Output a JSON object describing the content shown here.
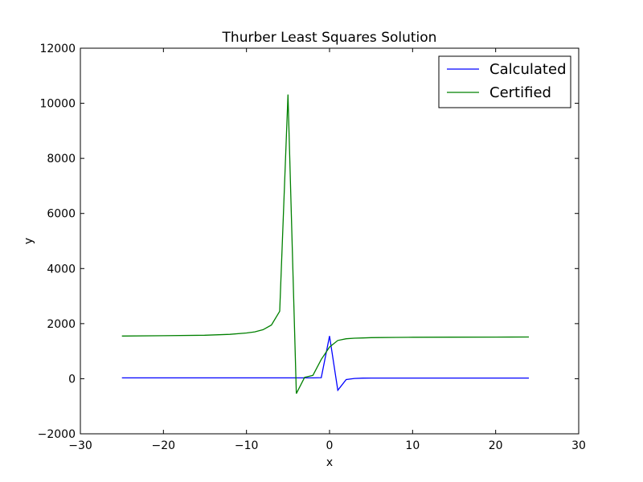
{
  "chart_data": {
    "type": "line",
    "title": "Thurber Least Squares Solution",
    "xlabel": "x",
    "ylabel": "y",
    "xlim": [
      -30,
      30
    ],
    "ylim": [
      -2000,
      12000
    ],
    "xticks": [
      -30,
      -20,
      -10,
      0,
      10,
      20,
      30
    ],
    "yticks": [
      -2000,
      0,
      2000,
      4000,
      6000,
      8000,
      10000,
      12000
    ],
    "grid": false,
    "legend_position": "top-right",
    "series": [
      {
        "name": "Calculated",
        "color": "#0000ff",
        "x": [
          -25,
          -20,
          -15,
          -10,
          -5,
          -4,
          -3,
          -2,
          -1,
          0,
          1,
          2,
          3,
          4,
          5,
          6,
          8,
          10,
          15,
          20,
          24
        ],
        "y": [
          30,
          30,
          30,
          30,
          30,
          30,
          30,
          30,
          40,
          1550,
          -420,
          -30,
          10,
          20,
          25,
          25,
          25,
          25,
          25,
          25,
          25
        ]
      },
      {
        "name": "Certified",
        "color": "#008000",
        "x": [
          -25,
          -20,
          -15,
          -12,
          -10,
          -9,
          -8,
          -7,
          -6,
          -5,
          -4,
          -3,
          -2,
          -1,
          0,
          1,
          2,
          3,
          4,
          5,
          6,
          8,
          10,
          15,
          20,
          24
        ],
        "y": [
          1550,
          1560,
          1580,
          1610,
          1660,
          1700,
          1780,
          1950,
          2450,
          10320,
          -540,
          50,
          120,
          700,
          1150,
          1390,
          1450,
          1470,
          1480,
          1490,
          1495,
          1500,
          1505,
          1510,
          1512,
          1515
        ]
      }
    ]
  }
}
